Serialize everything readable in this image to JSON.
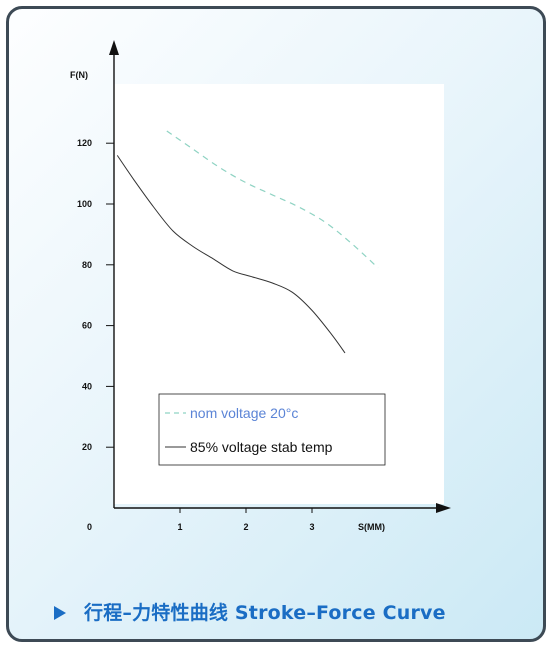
{
  "chart_data": {
    "type": "line",
    "ylabel": "F(N)",
    "xlabel": "S(MM)",
    "origin_label": "0",
    "x_ticks": [
      "1",
      "2",
      "3"
    ],
    "y_ticks": [
      "20",
      "40",
      "60",
      "80",
      "100",
      "120"
    ],
    "xlim": [
      0,
      4
    ],
    "ylim": [
      0,
      140
    ],
    "grid": false,
    "legend_position": "bottom-left",
    "series": [
      {
        "name": "nom  voltage 20°c",
        "style": "dashed",
        "color": "#8fd3c3",
        "x": [
          0.8,
          1.2,
          1.6,
          2.0,
          2.4,
          2.8,
          3.2,
          3.6,
          4.0
        ],
        "y": [
          124,
          118,
          112,
          107,
          103,
          99,
          94,
          87,
          79
        ]
      },
      {
        "name": "85%  voltage stab temp",
        "style": "solid",
        "color": "#333333",
        "x": [
          0.05,
          0.3,
          0.6,
          0.9,
          1.2,
          1.5,
          1.8,
          2.1,
          2.4,
          2.7,
          3.0,
          3.3,
          3.5
        ],
        "y": [
          116,
          108,
          99,
          91,
          86,
          82,
          78,
          76,
          74,
          71,
          65,
          57,
          51
        ]
      }
    ]
  },
  "caption": {
    "text": "行程–力特性曲线 Stroke–Force Curve",
    "color": "#1a6dc4"
  },
  "colors": {
    "plot_area": "#ffffff",
    "axis": "#111111",
    "legend_dashed_text": "#5b84d6",
    "legend_solid_text": "#111111"
  }
}
